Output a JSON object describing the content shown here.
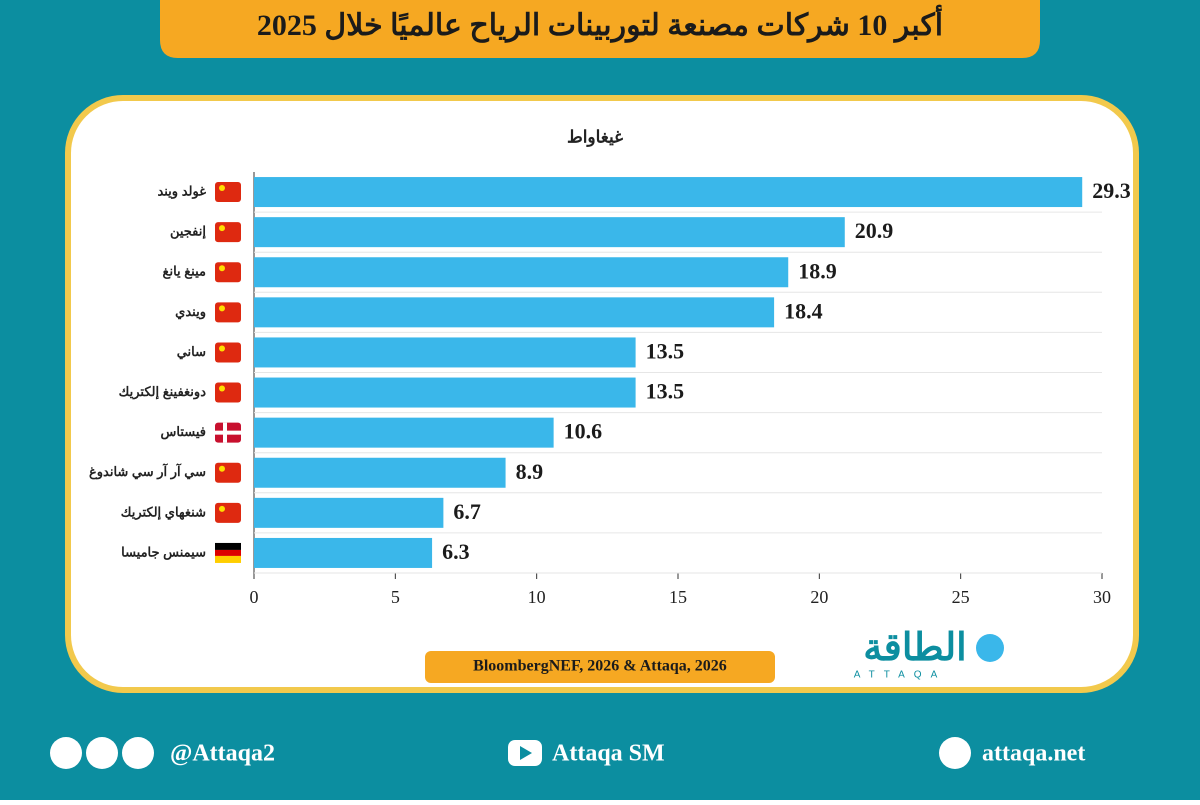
{
  "title": "أكبر 10 شركات مصنعة لتوربينات الرياح عالميًا خلال 2025",
  "chart_data": {
    "type": "bar",
    "orientation": "horizontal",
    "subtitle": "غيغاواط",
    "categories": [
      "غولد ويند",
      "إنفجين",
      "مينغ يانغ",
      "ويندي",
      "ساني",
      "دونغفينغ إلكتريك",
      "فيستاس",
      "سي آر آر سي شاندوغ",
      "شنغهاي إلكتريك",
      "سيمنس جاميسا"
    ],
    "values": [
      29.3,
      20.9,
      18.9,
      18.4,
      13.5,
      13.5,
      10.6,
      8.9,
      6.7,
      6.3
    ],
    "color": "#3ab7ea",
    "xlim": [
      0,
      30
    ],
    "xticks": [
      0,
      5,
      10,
      15,
      20,
      25,
      30
    ],
    "grid": false,
    "source": "BloombergNEF, 2026 & Attaqa, 2026"
  },
  "logo": {
    "name": "الطاقة",
    "latin": "ATTAQA"
  },
  "footer": {
    "social": "@Attaqa2",
    "youtube": "Attaqa SM",
    "website": "attaqa.net"
  }
}
